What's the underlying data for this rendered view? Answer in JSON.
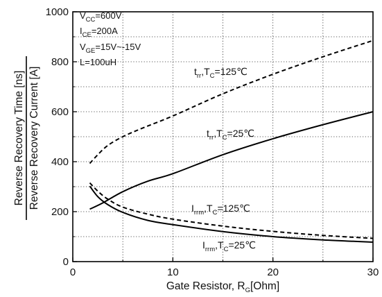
{
  "chart_data": {
    "type": "line",
    "xlabel": {
      "main": "Gate Resistor, R",
      "sub": "G",
      "tail": "[Ohm]"
    },
    "ylabel": {
      "top": "Reverse Recovery Time [ns]",
      "bottom": "Reverse Recovery Current [A]"
    },
    "xlim": [
      0,
      30
    ],
    "ylim": [
      0,
      1000
    ],
    "xticks": [
      0,
      10,
      20,
      30
    ],
    "yticks": [
      0,
      200,
      400,
      600,
      800,
      1000
    ],
    "grid": "dotted",
    "conditions": [
      {
        "main": "V",
        "sub": "CC",
        "tail": "=600V"
      },
      {
        "main": "I",
        "sub": "CE",
        "tail": "=200A"
      },
      {
        "main": "V",
        "sub": "GE",
        "tail": "=15V~-15V"
      },
      {
        "main": "L=100uH",
        "sub": "",
        "tail": ""
      }
    ],
    "series": [
      {
        "label": {
          "main": "t",
          "sub": "rr",
          "mid": ",T",
          "sub2": "C",
          "tail": "=125℃"
        },
        "style": "dashed",
        "x": [
          1.7,
          2.5,
          3.5,
          5,
          7,
          10,
          15,
          20,
          25,
          30
        ],
        "y": [
          393,
          428,
          465,
          500,
          535,
          583,
          672,
          750,
          820,
          885
        ]
      },
      {
        "label": {
          "main": "t",
          "sub": "rr",
          "mid": ",T",
          "sub2": "C",
          "tail": "=25℃"
        },
        "style": "solid",
        "x": [
          1.7,
          3,
          5,
          7.5,
          10,
          15,
          20,
          25,
          30
        ],
        "y": [
          210,
          235,
          280,
          322,
          352,
          428,
          492,
          548,
          600
        ]
      },
      {
        "label": {
          "main": "I",
          "sub": "rrm",
          "mid": ",T",
          "sub2": "C",
          "tail": "=125℃"
        },
        "style": "dashed",
        "x": [
          1.7,
          2.5,
          3.5,
          5,
          7.5,
          10,
          15,
          20,
          25,
          30
        ],
        "y": [
          315,
          282,
          250,
          218,
          190,
          170,
          142,
          121,
          105,
          93
        ]
      },
      {
        "label": {
          "main": "I",
          "sub": "rrm",
          "mid": ",T",
          "sub2": "C",
          "tail": "=25℃"
        },
        "style": "solid",
        "x": [
          1.7,
          2.5,
          3.5,
          5,
          7.5,
          10,
          15,
          20,
          25,
          30
        ],
        "y": [
          302,
          260,
          228,
          197,
          165,
          148,
          120,
          100,
          87,
          78
        ]
      }
    ]
  }
}
